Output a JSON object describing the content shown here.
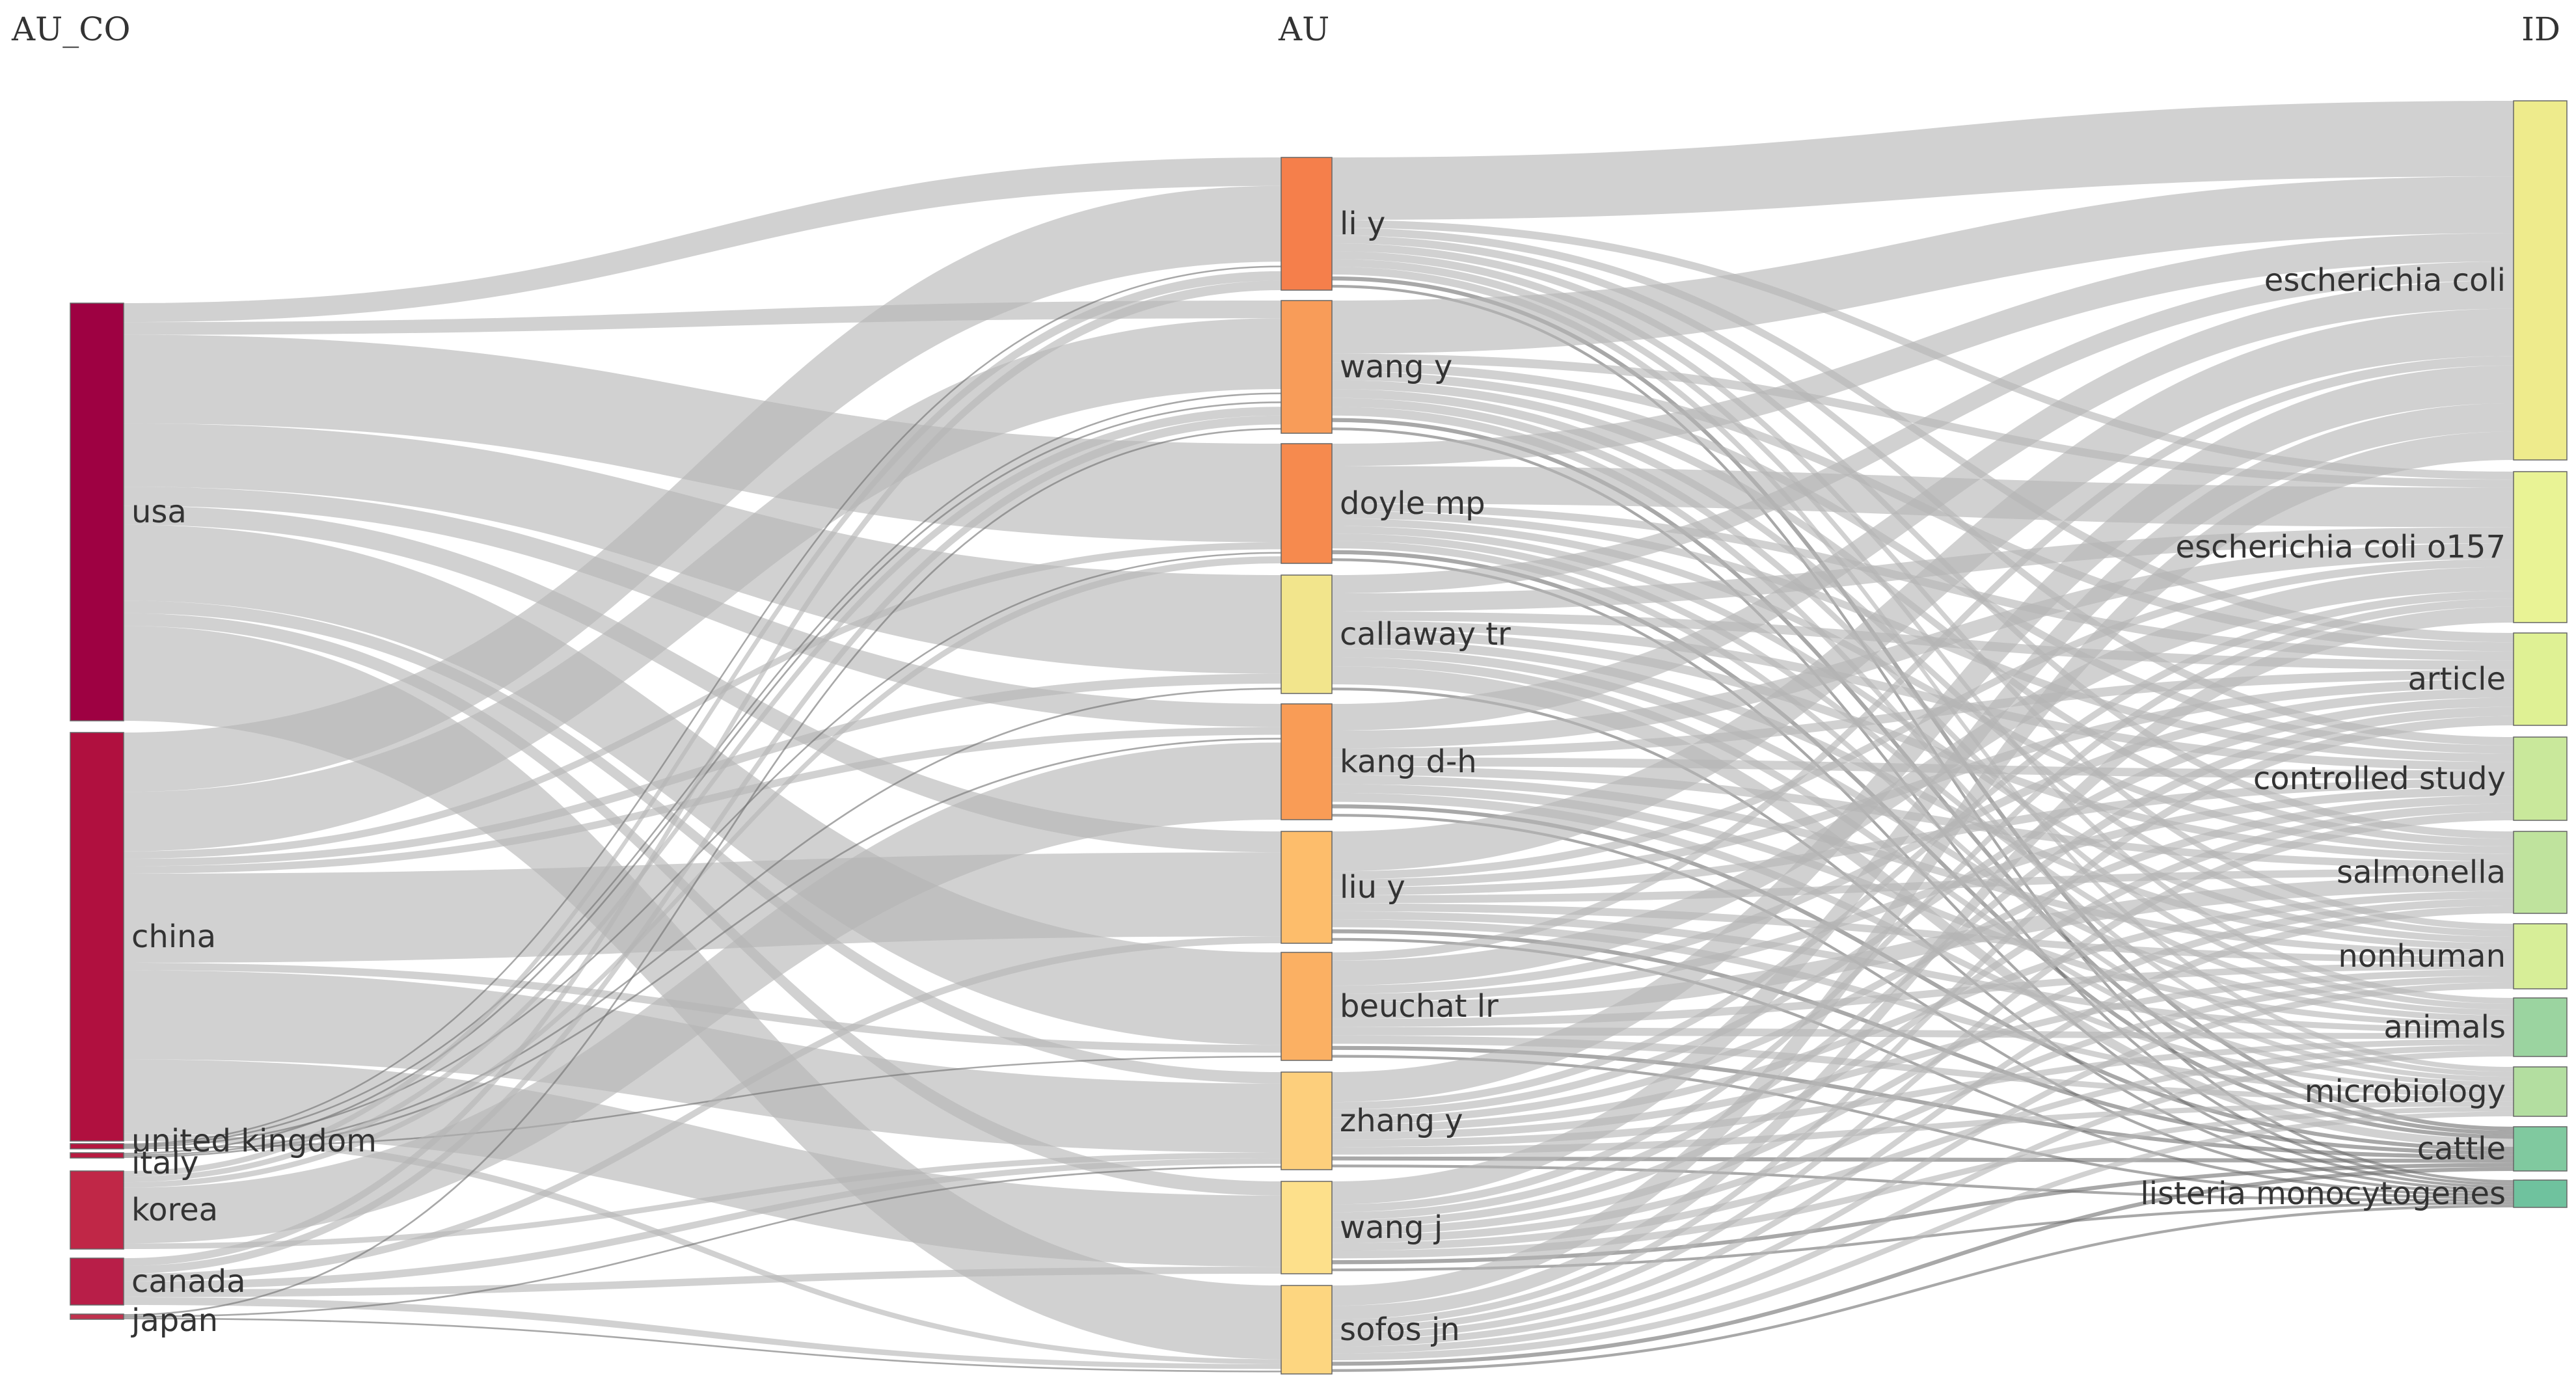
{
  "columns": {
    "left": "AU_CO",
    "middle": "AU",
    "right": "ID"
  },
  "nodes": {
    "au_co": [
      {
        "id": "usa",
        "label": "usa",
        "color": "#9e0142"
      },
      {
        "id": "china",
        "label": "china",
        "color": "#b0103f"
      },
      {
        "id": "uk",
        "label": "united kingdom",
        "color": "#b5173f"
      },
      {
        "id": "italy",
        "label": "italy",
        "color": "#b81b41"
      },
      {
        "id": "korea",
        "label": "korea",
        "color": "#c02747"
      },
      {
        "id": "canada",
        "label": "canada",
        "color": "#b81e48"
      },
      {
        "id": "japan",
        "label": "japan",
        "color": "#c0324e"
      }
    ],
    "au": [
      {
        "id": "liy",
        "label": "li y",
        "color": "#f57f4b"
      },
      {
        "id": "wangy",
        "label": "wang y",
        "color": "#f89c59"
      },
      {
        "id": "doyle",
        "label": "doyle mp",
        "color": "#f68a4e"
      },
      {
        "id": "callaway",
        "label": "callaway tr",
        "color": "#f2e58c"
      },
      {
        "id": "kang",
        "label": "kang d-h",
        "color": "#f99c56"
      },
      {
        "id": "liuy",
        "label": "liu y",
        "color": "#fdbd6b"
      },
      {
        "id": "beuchat",
        "label": "beuchat lr",
        "color": "#fbb063"
      },
      {
        "id": "zhangy",
        "label": "zhang y",
        "color": "#fdcf7c"
      },
      {
        "id": "wangj",
        "label": "wang j",
        "color": "#fde08b"
      },
      {
        "id": "sofos",
        "label": "sofos jn",
        "color": "#fdd680"
      }
    ],
    "id": [
      {
        "id": "ecoli",
        "label": "escherichia coli",
        "color": "#eeeb8c"
      },
      {
        "id": "ecoli157",
        "label": "escherichia coli o157",
        "color": "#e9f395"
      },
      {
        "id": "article",
        "label": "article",
        "color": "#dff194"
      },
      {
        "id": "controlled",
        "label": "controlled study",
        "color": "#c9e89b"
      },
      {
        "id": "salmonella",
        "label": "salmonella",
        "color": "#bfe39d"
      },
      {
        "id": "nonhuman",
        "label": "nonhuman",
        "color": "#d7ee98"
      },
      {
        "id": "animals",
        "label": "animals",
        "color": "#9bd4a0"
      },
      {
        "id": "microbiology",
        "label": "microbiology",
        "color": "#b3dea0"
      },
      {
        "id": "cattle",
        "label": "cattle",
        "color": "#80c99f"
      },
      {
        "id": "listeria",
        "label": "listeria monocytogenes",
        "color": "#6fc29e"
      }
    ]
  },
  "links": {
    "au_co_to_au": [
      [
        "usa",
        "liy",
        3
      ],
      [
        "usa",
        "wangy",
        2
      ],
      [
        "usa",
        "doyle",
        14
      ],
      [
        "usa",
        "callaway",
        10
      ],
      [
        "usa",
        "kang",
        3
      ],
      [
        "usa",
        "liuy",
        3
      ],
      [
        "usa",
        "beuchat",
        12
      ],
      [
        "usa",
        "zhangy",
        2
      ],
      [
        "usa",
        "wangj",
        2
      ],
      [
        "usa",
        "sofos",
        15
      ],
      [
        "china",
        "liy",
        8
      ],
      [
        "china",
        "wangy",
        8
      ],
      [
        "china",
        "doyle",
        1
      ],
      [
        "china",
        "callaway",
        1
      ],
      [
        "china",
        "kang",
        1
      ],
      [
        "china",
        "liuy",
        12
      ],
      [
        "china",
        "beuchat",
        1
      ],
      [
        "china",
        "zhangy",
        12
      ],
      [
        "china",
        "wangj",
        10
      ],
      [
        "china",
        "sofos",
        1
      ],
      [
        "uk",
        "liy",
        1
      ],
      [
        "uk",
        "wangy",
        1
      ],
      [
        "uk",
        "doyle",
        1
      ],
      [
        "uk",
        "beuchat",
        1
      ],
      [
        "italy",
        "wangy",
        1
      ],
      [
        "italy",
        "callaway",
        1
      ],
      [
        "italy",
        "kang",
        1
      ],
      [
        "korea",
        "liy",
        1
      ],
      [
        "korea",
        "wangy",
        1
      ],
      [
        "korea",
        "doyle",
        1
      ],
      [
        "korea",
        "kang",
        10
      ],
      [
        "korea",
        "zhangy",
        1
      ],
      [
        "canada",
        "liy",
        1
      ],
      [
        "canada",
        "wangy",
        1
      ],
      [
        "canada",
        "liuy",
        1
      ],
      [
        "canada",
        "zhangy",
        1
      ],
      [
        "canada",
        "wangj",
        1
      ],
      [
        "canada",
        "sofos",
        1
      ],
      [
        "japan",
        "wangy",
        1
      ],
      [
        "japan",
        "zhangy",
        1
      ],
      [
        "japan",
        "sofos",
        1
      ]
    ],
    "au_to_id": [
      [
        "liy",
        "ecoli",
        8
      ],
      [
        "liy",
        "ecoli157",
        1
      ],
      [
        "liy",
        "article",
        1
      ],
      [
        "liy",
        "controlled",
        1
      ],
      [
        "liy",
        "salmonella",
        1
      ],
      [
        "liy",
        "nonhuman",
        1
      ],
      [
        "liy",
        "animals",
        1
      ],
      [
        "liy",
        "microbiology",
        1
      ],
      [
        "liy",
        "cattle",
        1
      ],
      [
        "liy",
        "listeria",
        1
      ],
      [
        "wangy",
        "ecoli",
        6
      ],
      [
        "wangy",
        "ecoli157",
        1
      ],
      [
        "wangy",
        "article",
        1
      ],
      [
        "wangy",
        "controlled",
        1
      ],
      [
        "wangy",
        "salmonella",
        1
      ],
      [
        "wangy",
        "nonhuman",
        1
      ],
      [
        "wangy",
        "animals",
        1
      ],
      [
        "wangy",
        "microbiology",
        1
      ],
      [
        "wangy",
        "cattle",
        1
      ],
      [
        "wangy",
        "listeria",
        1
      ],
      [
        "doyle",
        "ecoli",
        3
      ],
      [
        "doyle",
        "ecoli157",
        5
      ],
      [
        "doyle",
        "article",
        1
      ],
      [
        "doyle",
        "controlled",
        1
      ],
      [
        "doyle",
        "salmonella",
        1
      ],
      [
        "doyle",
        "nonhuman",
        1
      ],
      [
        "doyle",
        "animals",
        1
      ],
      [
        "doyle",
        "microbiology",
        1
      ],
      [
        "doyle",
        "cattle",
        1
      ],
      [
        "doyle",
        "listeria",
        1
      ],
      [
        "callaway",
        "ecoli",
        2
      ],
      [
        "callaway",
        "ecoli157",
        2
      ],
      [
        "callaway",
        "article",
        1
      ],
      [
        "callaway",
        "controlled",
        1
      ],
      [
        "callaway",
        "salmonella",
        1
      ],
      [
        "callaway",
        "nonhuman",
        1
      ],
      [
        "callaway",
        "animals",
        1
      ],
      [
        "callaway",
        "microbiology",
        1
      ],
      [
        "callaway",
        "cattle",
        2
      ],
      [
        "callaway",
        "listeria",
        1
      ],
      [
        "kang",
        "ecoli",
        3
      ],
      [
        "kang",
        "ecoli157",
        2
      ],
      [
        "kang",
        "article",
        1
      ],
      [
        "kang",
        "controlled",
        1
      ],
      [
        "kang",
        "salmonella",
        1
      ],
      [
        "kang",
        "nonhuman",
        1
      ],
      [
        "kang",
        "animals",
        1
      ],
      [
        "kang",
        "microbiology",
        1
      ],
      [
        "kang",
        "cattle",
        1
      ],
      [
        "kang",
        "listeria",
        1
      ],
      [
        "liuy",
        "ecoli",
        5
      ],
      [
        "liuy",
        "ecoli157",
        1
      ],
      [
        "liuy",
        "article",
        1
      ],
      [
        "liuy",
        "controlled",
        1
      ],
      [
        "liuy",
        "salmonella",
        1
      ],
      [
        "liuy",
        "nonhuman",
        1
      ],
      [
        "liuy",
        "animals",
        1
      ],
      [
        "liuy",
        "microbiology",
        1
      ],
      [
        "liuy",
        "cattle",
        1
      ],
      [
        "liuy",
        "listeria",
        1
      ],
      [
        "beuchat",
        "ecoli",
        1
      ],
      [
        "beuchat",
        "ecoli157",
        3
      ],
      [
        "beuchat",
        "article",
        1
      ],
      [
        "beuchat",
        "controlled",
        1
      ],
      [
        "beuchat",
        "salmonella",
        2
      ],
      [
        "beuchat",
        "nonhuman",
        1
      ],
      [
        "beuchat",
        "animals",
        1
      ],
      [
        "beuchat",
        "microbiology",
        1
      ],
      [
        "beuchat",
        "cattle",
        1
      ],
      [
        "beuchat",
        "listeria",
        1
      ],
      [
        "zhangy",
        "ecoli",
        4
      ],
      [
        "zhangy",
        "ecoli157",
        1
      ],
      [
        "zhangy",
        "article",
        1
      ],
      [
        "zhangy",
        "controlled",
        1
      ],
      [
        "zhangy",
        "salmonella",
        1
      ],
      [
        "zhangy",
        "nonhuman",
        1
      ],
      [
        "zhangy",
        "animals",
        1
      ],
      [
        "zhangy",
        "microbiology",
        1
      ],
      [
        "zhangy",
        "cattle",
        1
      ],
      [
        "zhangy",
        "listeria",
        1
      ],
      [
        "wangj",
        "ecoli",
        3
      ],
      [
        "wangj",
        "ecoli157",
        1
      ],
      [
        "wangj",
        "article",
        1
      ],
      [
        "wangj",
        "controlled",
        1
      ],
      [
        "wangj",
        "salmonella",
        1
      ],
      [
        "wangj",
        "nonhuman",
        1
      ],
      [
        "wangj",
        "animals",
        1
      ],
      [
        "wangj",
        "microbiology",
        1
      ],
      [
        "wangj",
        "cattle",
        1
      ],
      [
        "wangj",
        "listeria",
        1
      ],
      [
        "sofos",
        "ecoli",
        3
      ],
      [
        "sofos",
        "ecoli157",
        2
      ],
      [
        "sofos",
        "article",
        1
      ],
      [
        "sofos",
        "controlled",
        1
      ],
      [
        "sofos",
        "salmonella",
        1
      ],
      [
        "sofos",
        "nonhuman",
        1
      ],
      [
        "sofos",
        "animals",
        1
      ],
      [
        "sofos",
        "microbiology",
        1
      ],
      [
        "sofos",
        "cattle",
        1
      ],
      [
        "sofos",
        "listeria",
        1
      ]
    ]
  }
}
